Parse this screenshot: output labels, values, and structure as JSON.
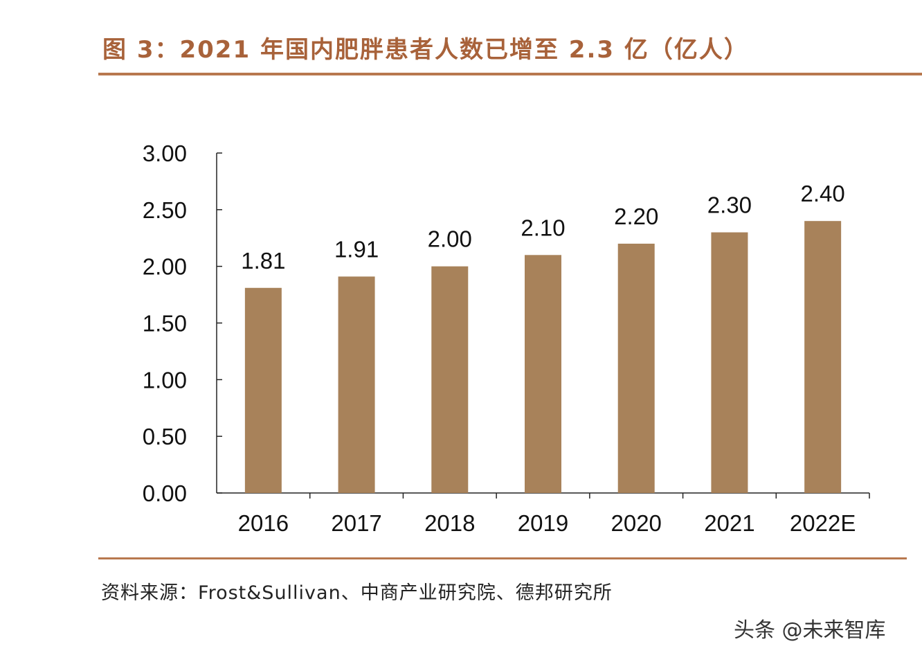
{
  "title": "图 3：2021 年国内肥胖患者人数已增至 2.3 亿（亿人）",
  "source": "资料来源：Frost&Sullivan、中商产业研究院、德邦研究所",
  "watermark": "头条 @未来智库",
  "chart_data": {
    "type": "bar",
    "categories": [
      "2016",
      "2017",
      "2018",
      "2019",
      "2020",
      "2021",
      "2022E"
    ],
    "values": [
      1.81,
      1.91,
      2.0,
      2.1,
      2.2,
      2.3,
      2.4
    ],
    "data_labels": [
      "1.81",
      "1.91",
      "2.00",
      "2.10",
      "2.20",
      "2.30",
      "2.40"
    ],
    "yticks": [
      "0.00",
      "0.50",
      "1.00",
      "1.50",
      "2.00",
      "2.50",
      "3.00"
    ],
    "ylim": [
      0,
      3
    ],
    "grid": false,
    "bar_color": "#a8825a"
  }
}
